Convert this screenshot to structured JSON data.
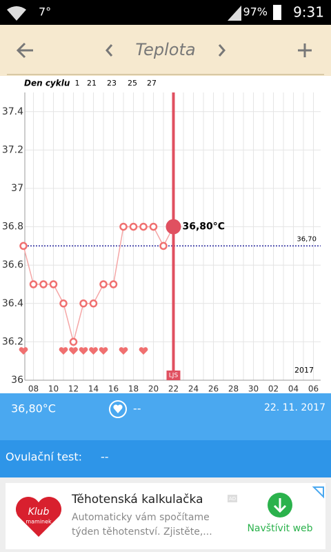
{
  "status_bar": {
    "temperature": "7°",
    "battery": "97%",
    "time": "9:31"
  },
  "header": {
    "title": "Teplota"
  },
  "chart_data": {
    "type": "line",
    "cycle_label": "Den cyklu",
    "cycle_days": [
      "1",
      "21",
      "23",
      "25",
      "27"
    ],
    "categories": [
      null,
      "08",
      null,
      "10",
      null,
      "12",
      null,
      "14",
      null,
      "16",
      null,
      "18",
      null,
      "20",
      null,
      "22",
      null,
      "24",
      null,
      "26",
      null,
      "28",
      null,
      "30",
      null,
      "02",
      null,
      "04",
      null,
      "06"
    ],
    "values": [
      36.7,
      36.5,
      36.5,
      36.5,
      36.4,
      36.2,
      36.4,
      36.4,
      36.5,
      36.5,
      36.8,
      36.8,
      36.8,
      36.8,
      36.7,
      36.8,
      null,
      null,
      null,
      null,
      null,
      null,
      null,
      null,
      null,
      null,
      null,
      null,
      null,
      null
    ],
    "value_labels": [
      null,
      null,
      null,
      null,
      null,
      null,
      null,
      null,
      null,
      null,
      null,
      null,
      null,
      null,
      null,
      "36,80°C",
      null,
      null,
      null,
      null,
      null,
      null,
      null,
      null,
      null,
      null,
      null,
      null,
      null,
      null
    ],
    "hearts": [
      true,
      false,
      false,
      false,
      true,
      true,
      true,
      true,
      true,
      false,
      true,
      false,
      true,
      false,
      false,
      false,
      false,
      false,
      false,
      false,
      false,
      false,
      false,
      false,
      false,
      false,
      false,
      false,
      false,
      false
    ],
    "color": "#f07070",
    "ylim": [
      36,
      37.5
    ],
    "yticks": [
      36,
      36.2,
      36.4,
      36.6,
      36.8,
      37,
      37.2,
      37.4
    ],
    "grid": true,
    "cover_line": {
      "value": 36.7,
      "label": "36,70"
    },
    "marker_label": "LJS",
    "year_label": "2017"
  },
  "summary": {
    "temperature": "36,80°C",
    "heart": "--",
    "date": "22. 11. 2017"
  },
  "ovulation": {
    "label": "Ovulační test:",
    "value": "--"
  },
  "ad": {
    "logo_top": "Klub",
    "logo_bottom": "maminek",
    "title": "Těhotenská kalkulačka",
    "badge": "AD",
    "line1": "Automaticky vám spočítame",
    "line2": "týden těhotenství. Zjistěte,...",
    "button": "Navštívit web"
  }
}
